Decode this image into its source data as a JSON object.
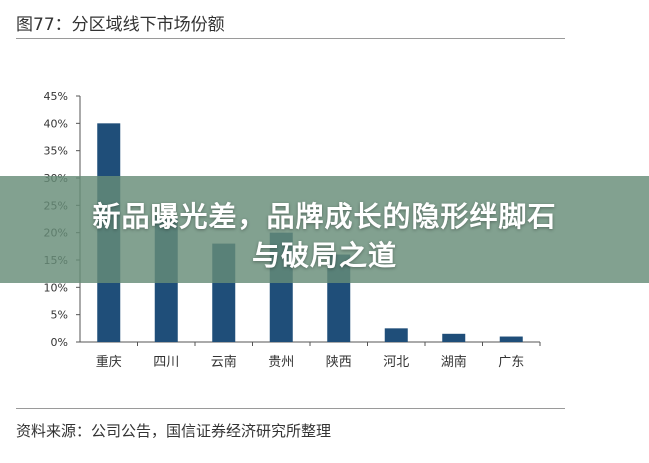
{
  "figure_title": "图77：分区域线下市场份额",
  "source": "资料来源：公司公告，国信证券经济研究所整理",
  "overlay": {
    "line1": "新品曝光差，品牌成长的隐形绊脚石",
    "line2": "与破局之道"
  },
  "colors": {
    "bar": "#1f4e79",
    "axis": "#555555",
    "banner": "#668c78"
  },
  "chart_data": {
    "type": "bar",
    "title": "",
    "xlabel": "",
    "ylabel": "",
    "categories": [
      "重庆",
      "四川",
      "云南",
      "贵州",
      "陕西",
      "河北",
      "湖南",
      "广东"
    ],
    "values": [
      40,
      23,
      18,
      20,
      16,
      2.5,
      1.5,
      1
    ],
    "ylim": [
      0,
      45
    ],
    "yticks": [
      "0%",
      "5%",
      "10%",
      "15%",
      "20%",
      "25%",
      "30%",
      "35%",
      "40%",
      "45%"
    ],
    "grid": false,
    "legend": "none"
  }
}
